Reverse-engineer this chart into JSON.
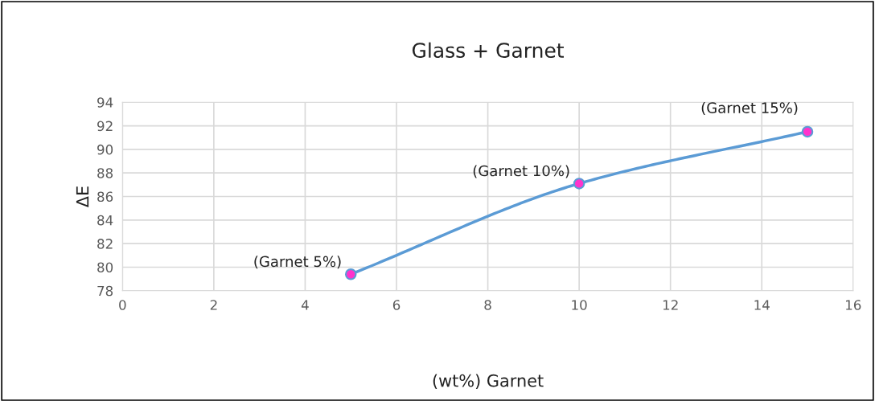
{
  "chart_data": {
    "type": "line",
    "title": "Glass + Garnet",
    "xlabel": "(wt%) Garnet",
    "ylabel": "ΔE",
    "x": [
      5,
      10,
      15
    ],
    "series": [
      {
        "color": "#5b9bd5",
        "colors": [
          "#ff33cc",
          "#ff33cc",
          "#ff33cc"
        ],
        "values": [
          79.4,
          87.1,
          91.5
        ]
      }
    ],
    "annotations": [
      {
        "text": "(Garnet 5%)",
        "x": 5,
        "y": 79.4
      },
      {
        "text": "(Garnet 10%)",
        "x": 10,
        "y": 87.1
      },
      {
        "text": "(Garnet 15%)",
        "x": 15,
        "y": 91.5
      }
    ],
    "xlim": [
      0,
      16
    ],
    "xticks": [
      0,
      2,
      4,
      6,
      8,
      10,
      12,
      14,
      16
    ],
    "ylim": [
      78,
      94
    ],
    "yticks": [
      78,
      80,
      82,
      84,
      86,
      88,
      90,
      92,
      94
    ],
    "grid": true,
    "marker": "circle",
    "legend": false
  }
}
